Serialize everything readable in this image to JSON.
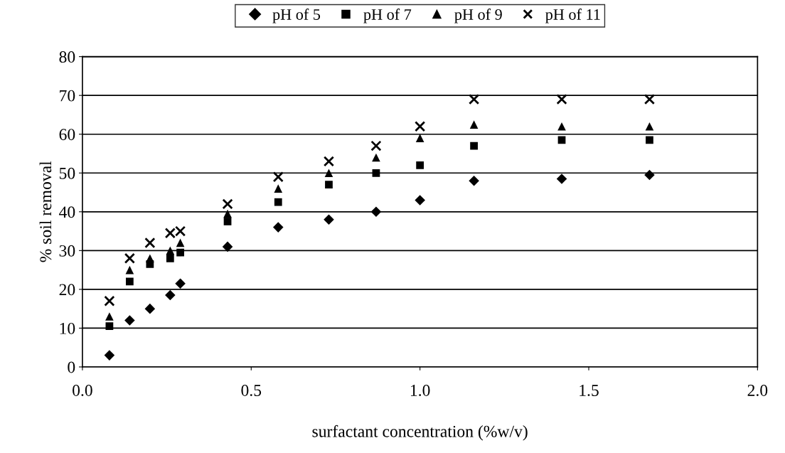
{
  "chart_data": {
    "type": "scatter",
    "xlabel": "surfactant concentration (%w/v)",
    "ylabel": "% soil removal",
    "x": [
      0.08,
      0.14,
      0.2,
      0.26,
      0.29,
      0.43,
      0.58,
      0.73,
      0.87,
      1.0,
      1.16,
      1.42,
      1.68
    ],
    "series": [
      {
        "name": "pH of 5",
        "color": "#000000",
        "marker": "diamond",
        "values": [
          3,
          12,
          15,
          18.5,
          21.5,
          31,
          36,
          38,
          40,
          43,
          48,
          48.5,
          49.5
        ]
      },
      {
        "name": "pH of 7",
        "color": "#000000",
        "marker": "square",
        "values": [
          10.5,
          22,
          26.5,
          28,
          29.5,
          37.5,
          42.5,
          47,
          50,
          52,
          57,
          58.5,
          58.5
        ]
      },
      {
        "name": "pH of 9",
        "color": "#000000",
        "marker": "triangle",
        "values": [
          13,
          25,
          28,
          30,
          32,
          39.5,
          46,
          50,
          54,
          59,
          62.5,
          62,
          62
        ]
      },
      {
        "name": "pH of 11",
        "color": "#000000",
        "marker": "cross",
        "values": [
          17,
          28,
          32,
          34.5,
          35,
          42,
          49,
          53,
          57,
          62,
          69,
          69,
          69
        ]
      }
    ],
    "xlim": [
      0,
      2.0
    ],
    "xticks": [
      {
        "value": 0,
        "label": "0.0"
      },
      0.5,
      {
        "value": 1,
        "label": "1.0"
      },
      1.5,
      {
        "value": 2,
        "label": "2.0"
      }
    ],
    "ylim": [
      0,
      80
    ],
    "yticks": [
      0,
      10,
      20,
      30,
      40,
      50,
      60,
      70,
      80
    ],
    "grid": "y",
    "legend": "top"
  }
}
